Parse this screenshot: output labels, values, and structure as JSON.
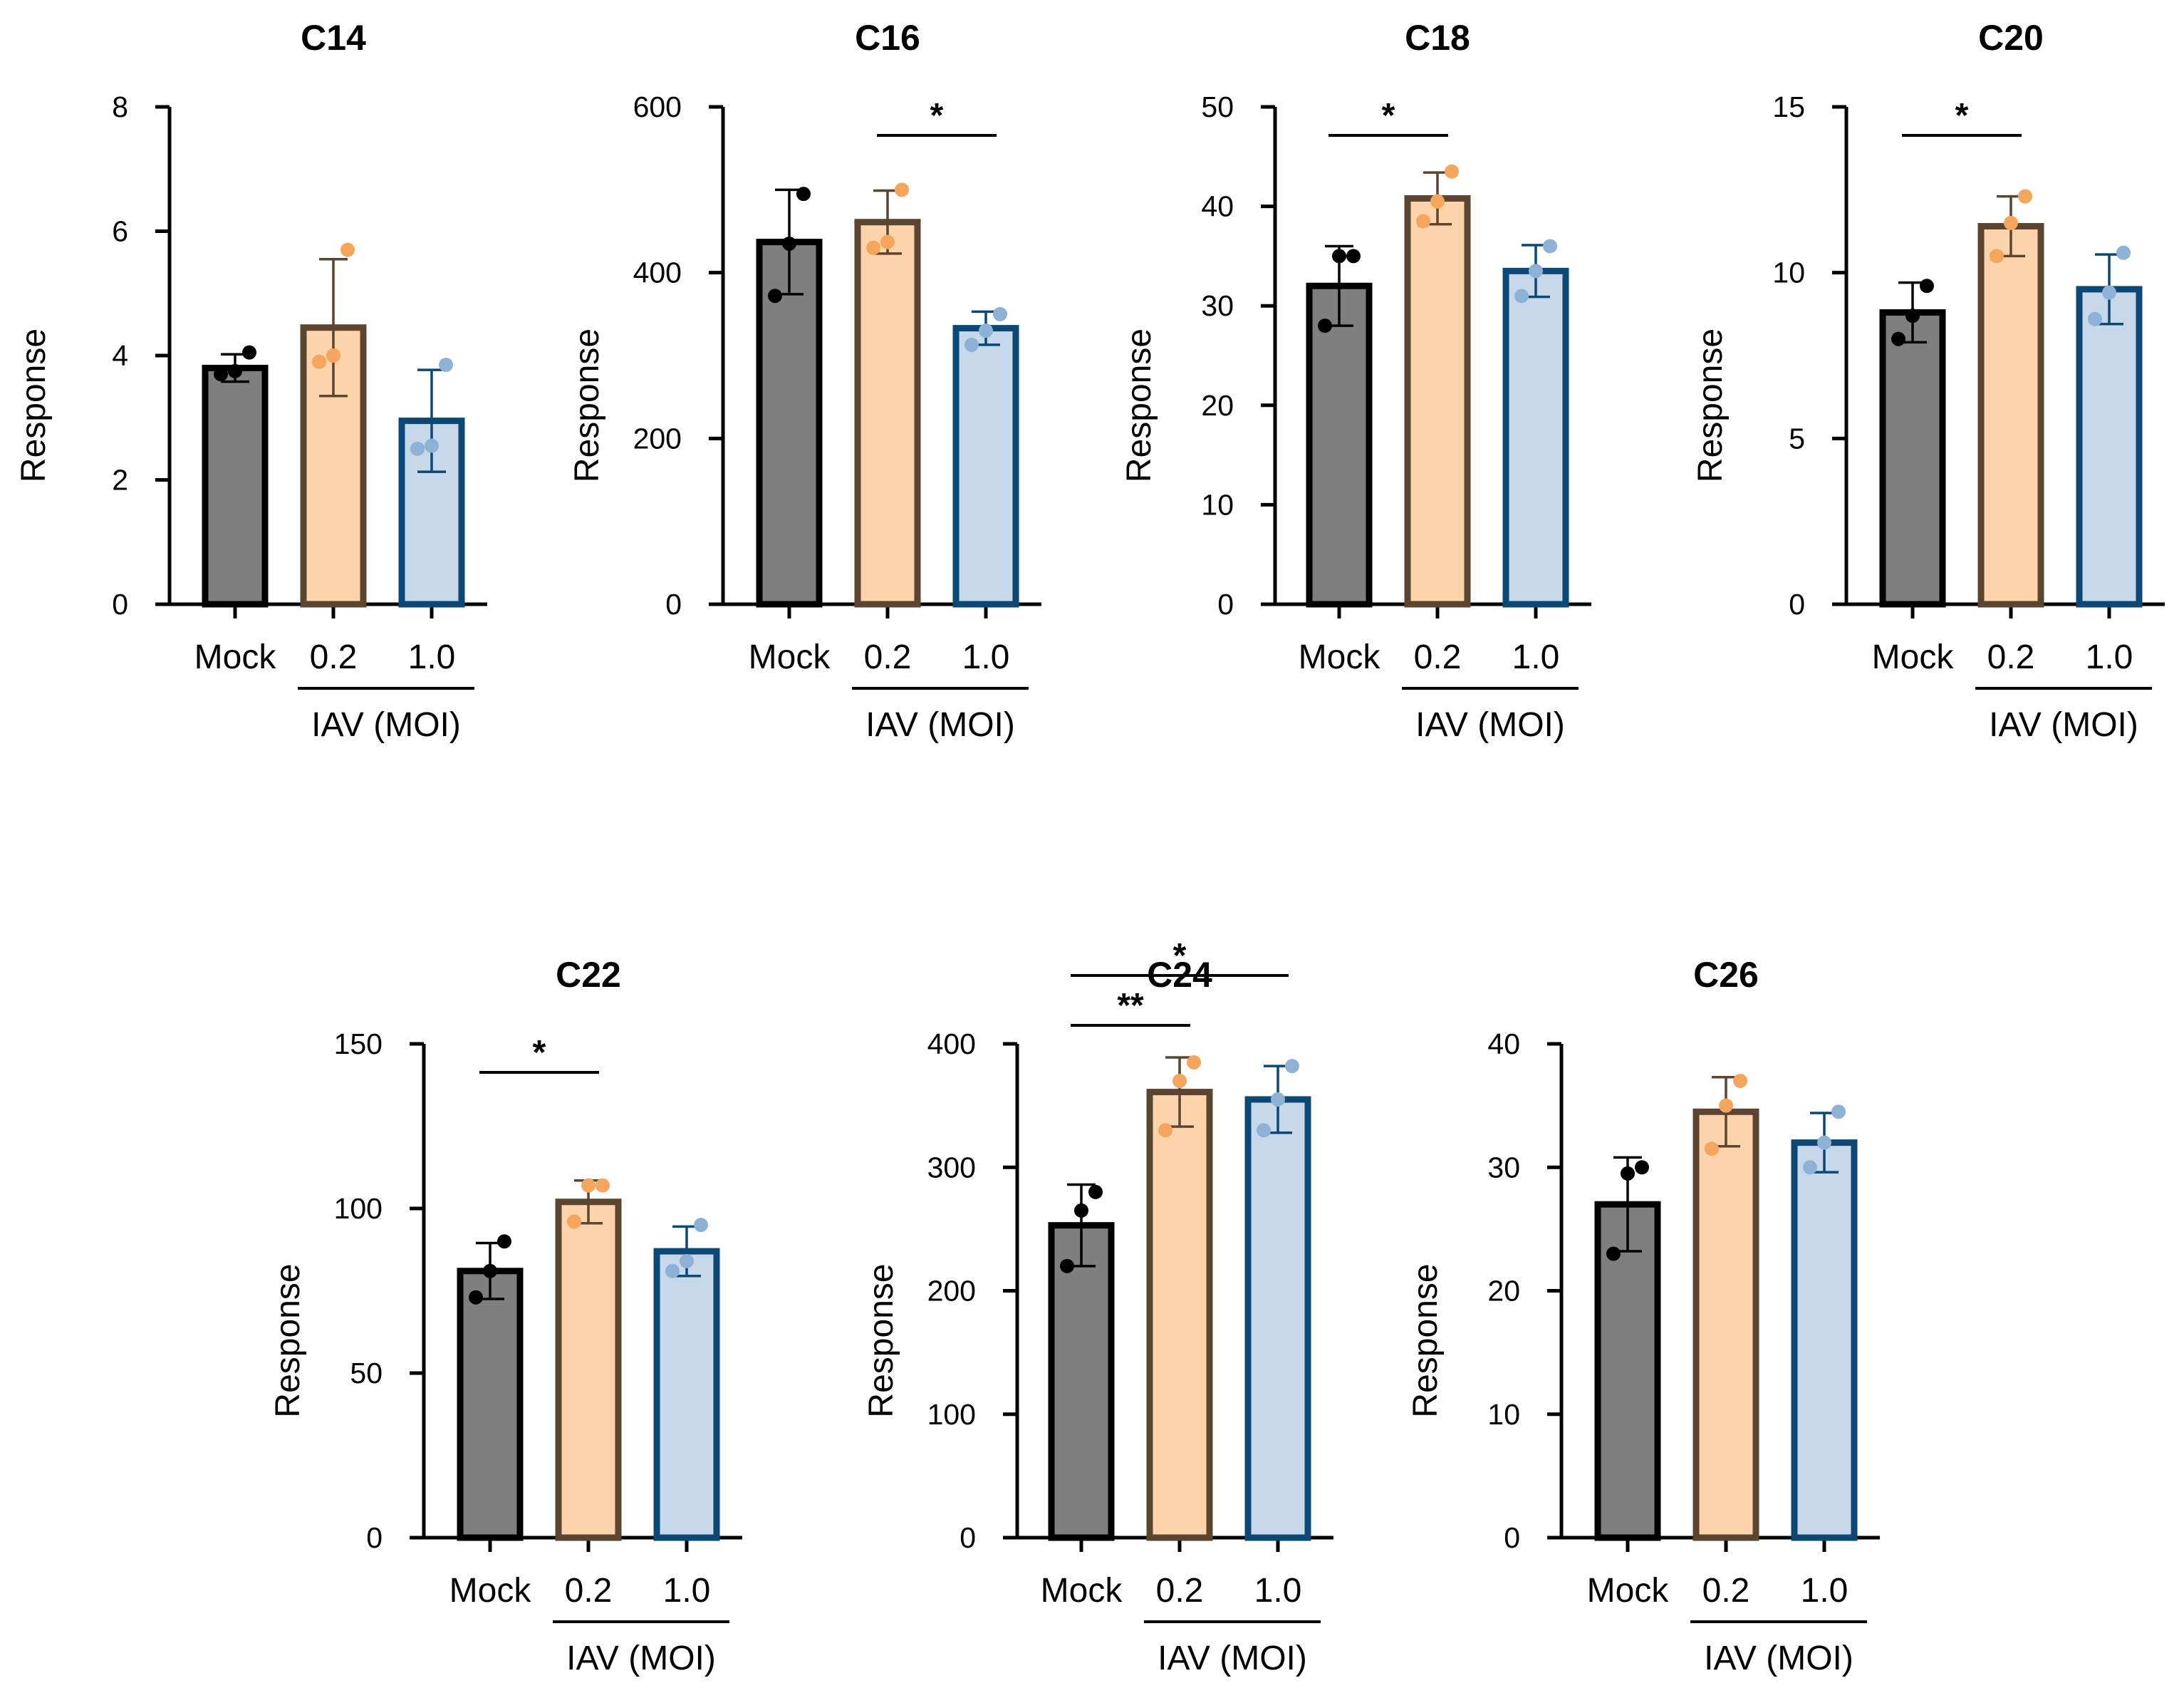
{
  "figure": {
    "colors": {
      "mock_fill": "#7f7f7f",
      "mock_edge": "#000000",
      "mock_dot": "#000000",
      "low_fill": "#fdd3ac",
      "low_edge": "#5b4430",
      "low_dot": "#f5a55c",
      "high_fill": "#c6d8ea",
      "high_edge": "#0b4876",
      "high_dot": "#8db2d5",
      "axis": "#000000"
    }
  },
  "chart_data": [
    {
      "type": "bar",
      "title": "C14",
      "ylabel": "Response",
      "ylim": [
        0,
        8
      ],
      "yticks": [
        0,
        2,
        4,
        6,
        8
      ],
      "categories": [
        "Mock",
        "0.2",
        "1.0"
      ],
      "group_label": "IAV (MOI)",
      "values": [
        3.8,
        4.45,
        2.95
      ],
      "sd": [
        0.22,
        1.1,
        0.82
      ],
      "points": [
        [
          3.7,
          3.75,
          4.05
        ],
        [
          3.9,
          4.0,
          5.7
        ],
        [
          2.5,
          2.55,
          3.85
        ]
      ],
      "significance": []
    },
    {
      "type": "bar",
      "title": "C16",
      "ylabel": "Response",
      "ylim": [
        0,
        600
      ],
      "yticks": [
        0,
        200,
        400,
        600
      ],
      "categories": [
        "Mock",
        "0.2",
        "1.0"
      ],
      "group_label": "IAV (MOI)",
      "values": [
        437,
        461,
        333
      ],
      "sd": [
        63,
        38,
        20
      ],
      "points": [
        [
          372,
          435,
          495
        ],
        [
          430,
          437,
          500
        ],
        [
          313,
          330,
          350
        ]
      ],
      "significance": [
        {
          "from": 1,
          "to": 2,
          "label": "*"
        }
      ]
    },
    {
      "type": "bar",
      "title": "C18",
      "ylabel": "Response",
      "ylim": [
        0,
        50
      ],
      "yticks": [
        0,
        10,
        20,
        30,
        40,
        50
      ],
      "categories": [
        "Mock",
        "0.2",
        "1.0"
      ],
      "group_label": "IAV (MOI)",
      "values": [
        32,
        40.8,
        33.5
      ],
      "sd": [
        4.0,
        2.6,
        2.6
      ],
      "points": [
        [
          28,
          35,
          35
        ],
        [
          38.5,
          40.5,
          43.5
        ],
        [
          31,
          33.5,
          36
        ]
      ],
      "significance": [
        {
          "from": 0,
          "to": 1,
          "label": "*"
        }
      ]
    },
    {
      "type": "bar",
      "title": "C20",
      "ylabel": "Response",
      "ylim": [
        0,
        15
      ],
      "yticks": [
        0,
        5,
        10,
        15
      ],
      "categories": [
        "Mock",
        "0.2",
        "1.0"
      ],
      "group_label": "IAV (MOI)",
      "values": [
        8.8,
        11.4,
        9.5
      ],
      "sd": [
        0.9,
        0.9,
        1.05
      ],
      "points": [
        [
          8.0,
          8.7,
          9.6
        ],
        [
          10.5,
          11.5,
          12.3
        ],
        [
          8.6,
          9.4,
          10.6
        ]
      ],
      "significance": [
        {
          "from": 0,
          "to": 1,
          "label": "*"
        }
      ]
    },
    {
      "type": "bar",
      "title": "C22",
      "ylabel": "Response",
      "ylim": [
        0,
        150
      ],
      "yticks": [
        0,
        50,
        100,
        150
      ],
      "categories": [
        "Mock",
        "0.2",
        "1.0"
      ],
      "group_label": "IAV (MOI)",
      "values": [
        81,
        102,
        87
      ],
      "sd": [
        8.5,
        6.5,
        7.5
      ],
      "points": [
        [
          73,
          81,
          90
        ],
        [
          96,
          107,
          107
        ],
        [
          81,
          84,
          95
        ]
      ],
      "significance": [
        {
          "from": 0,
          "to": 1,
          "label": "*"
        }
      ]
    },
    {
      "type": "bar",
      "title": "C24",
      "ylabel": "Response",
      "ylim": [
        0,
        400
      ],
      "yticks": [
        0,
        100,
        200,
        300,
        400
      ],
      "categories": [
        "Mock",
        "0.2",
        "1.0"
      ],
      "group_label": "IAV (MOI)",
      "values": [
        253,
        361,
        355
      ],
      "sd": [
        33,
        28,
        27
      ],
      "points": [
        [
          220,
          265,
          280
        ],
        [
          330,
          370,
          385
        ],
        [
          330,
          355,
          382
        ]
      ],
      "significance": [
        {
          "from": 0,
          "to": 1,
          "label": "**"
        },
        {
          "from": 0,
          "to": 2,
          "label": "*"
        }
      ]
    },
    {
      "type": "bar",
      "title": "C26",
      "ylabel": "Response",
      "ylim": [
        0,
        40
      ],
      "yticks": [
        0,
        10,
        20,
        30,
        40
      ],
      "categories": [
        "Mock",
        "0.2",
        "1.0"
      ],
      "group_label": "IAV (MOI)",
      "values": [
        27,
        34.5,
        32
      ],
      "sd": [
        3.8,
        2.8,
        2.4
      ],
      "points": [
        [
          23,
          29.5,
          30
        ],
        [
          31.5,
          35,
          37
        ],
        [
          30,
          32,
          34.5
        ]
      ],
      "significance": []
    }
  ]
}
